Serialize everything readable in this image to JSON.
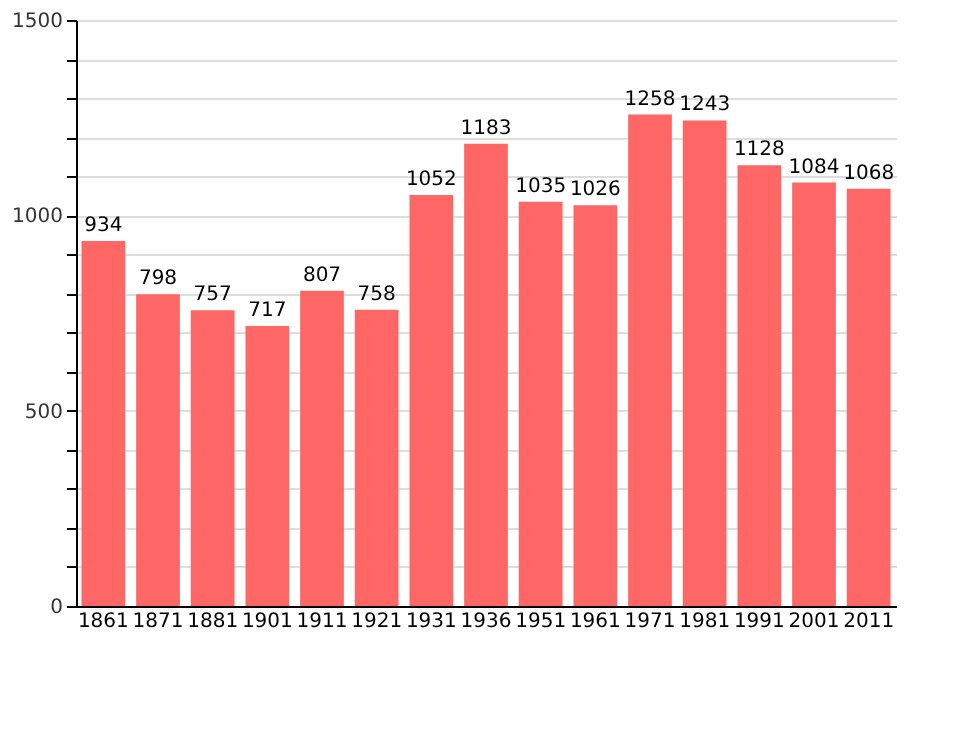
{
  "chart_data": {
    "type": "bar",
    "categories": [
      "1861",
      "1871",
      "1881",
      "1901",
      "1911",
      "1921",
      "1931",
      "1936",
      "1951",
      "1961",
      "1971",
      "1981",
      "1991",
      "2001",
      "2011"
    ],
    "values": [
      934,
      798,
      757,
      717,
      807,
      758,
      1052,
      1183,
      1035,
      1026,
      1258,
      1243,
      1128,
      1084,
      1068
    ],
    "color": "#ff6666",
    "data_labels": true,
    "grid": "y",
    "ylim": [
      0,
      1500
    ],
    "yticks": [
      0,
      {
        "value": 100,
        "label": null
      },
      {
        "value": 200,
        "label": null
      },
      {
        "value": 300,
        "label": null
      },
      {
        "value": 400,
        "label": null
      },
      500,
      {
        "value": 600,
        "label": null
      },
      {
        "value": 700,
        "label": null
      },
      {
        "value": 800,
        "label": null
      },
      {
        "value": 900,
        "label": null
      },
      1000,
      {
        "value": 1100,
        "label": null
      },
      {
        "value": 1200,
        "label": null
      },
      {
        "value": 1300,
        "label": null
      },
      {
        "value": 1400,
        "label": null
      },
      1500
    ]
  }
}
